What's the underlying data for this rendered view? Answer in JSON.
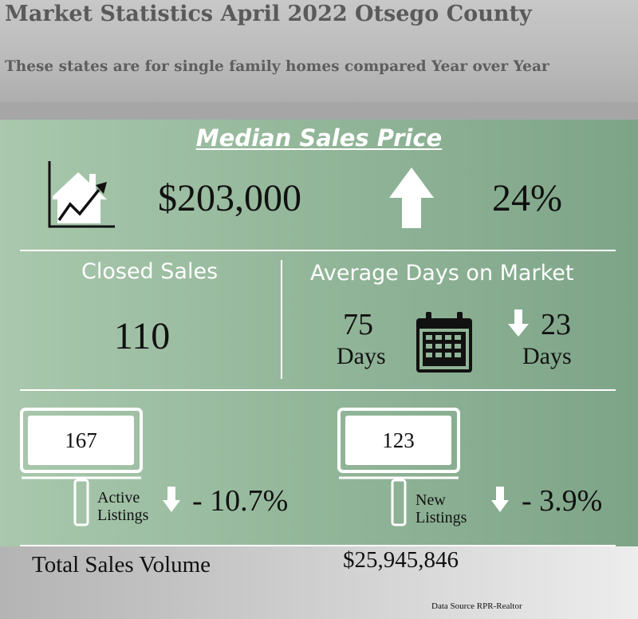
{
  "header": {
    "title": "Market Statistics April 2022 Otsego County",
    "subtitle": "These states are for single family homes compared Year over Year"
  },
  "median_sales_price": {
    "heading": "Median Sales Price",
    "value": "$203,000",
    "change": "24%",
    "trend": "up",
    "icon": "house-rising-chart-icon"
  },
  "closed_sales": {
    "label": "Closed Sales",
    "value": "110"
  },
  "days_on_market": {
    "label": "Average Days on Market",
    "value": "75",
    "value_unit": "Days",
    "change": "23",
    "change_unit": "Days",
    "trend": "down",
    "icon": "calendar-icon"
  },
  "active_listings": {
    "value": "167",
    "label_line1": "Active",
    "label_line2": "Listings",
    "change": "- 10.7%",
    "trend": "down"
  },
  "new_listings": {
    "value": "123",
    "label_line1": "New",
    "label_line2": "Listings",
    "change": "- 3.9%",
    "trend": "down"
  },
  "footer": {
    "total_label": "Total Sales Volume",
    "total_value": "$25,945,846",
    "source": "Data Source RPR-Realtor"
  },
  "colors": {
    "panel_green": "#90b497",
    "header_gray": "#bdbdbd",
    "title_gray": "#5a5a5a"
  }
}
